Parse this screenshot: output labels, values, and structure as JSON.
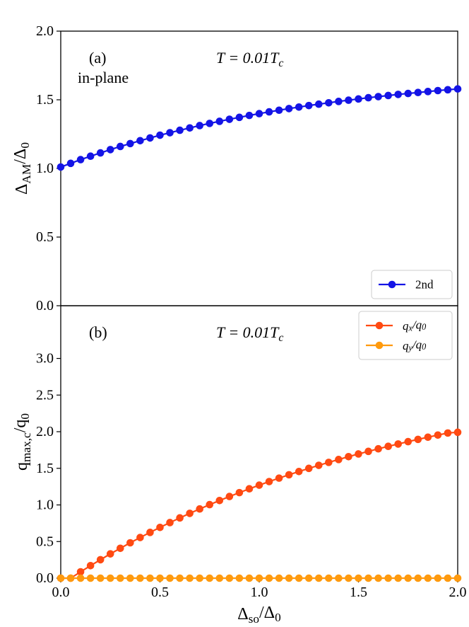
{
  "chart_data": [
    {
      "type": "line",
      "panel_label": "(a)",
      "note": "in-plane",
      "title": [
        "T = 0.01T",
        "c"
      ],
      "ylabel": [
        "Δ",
        "AM",
        "/Δ",
        "0"
      ],
      "x": [
        0,
        0.05,
        0.1,
        0.15,
        0.2,
        0.25,
        0.3,
        0.35,
        0.4,
        0.45,
        0.5,
        0.55,
        0.6,
        0.65,
        0.7,
        0.75,
        0.8,
        0.85,
        0.9,
        0.95,
        1.0,
        1.05,
        1.1,
        1.15,
        1.2,
        1.25,
        1.3,
        1.35,
        1.4,
        1.45,
        1.5,
        1.55,
        1.6,
        1.65,
        1.7,
        1.75,
        1.8,
        1.85,
        1.9,
        1.95,
        2.0
      ],
      "xlim": [
        0,
        2
      ],
      "ylim": [
        0,
        2
      ],
      "yticks": [
        {
          "value": 0,
          "label": "0.0"
        },
        {
          "value": 0.5,
          "label": "0.5"
        },
        {
          "value": 1,
          "label": "1.0"
        },
        {
          "value": 1.5,
          "label": "1.5"
        },
        {
          "value": 2,
          "label": "2.0"
        }
      ],
      "legend": "lower right",
      "series": [
        {
          "name": "2nd",
          "color": "#1414e6",
          "values": [
            1.01,
            1.037,
            1.064,
            1.089,
            1.113,
            1.137,
            1.16,
            1.181,
            1.202,
            1.222,
            1.242,
            1.26,
            1.278,
            1.295,
            1.312,
            1.328,
            1.343,
            1.358,
            1.372,
            1.386,
            1.399,
            1.412,
            1.424,
            1.436,
            1.447,
            1.458,
            1.468,
            1.478,
            1.488,
            1.497,
            1.506,
            1.515,
            1.523,
            1.531,
            1.539,
            1.546,
            1.553,
            1.56,
            1.567,
            1.573,
            1.579
          ]
        }
      ]
    },
    {
      "type": "line",
      "panel_label": "(b)",
      "title": [
        "T = 0.01T",
        "c"
      ],
      "ylabel": [
        "q",
        "max,c",
        "/q",
        "0"
      ],
      "xlabel": [
        "Δ",
        "so",
        "/Δ",
        "0"
      ],
      "x": [
        0,
        0.05,
        0.1,
        0.15,
        0.2,
        0.25,
        0.3,
        0.35,
        0.4,
        0.45,
        0.5,
        0.55,
        0.6,
        0.65,
        0.7,
        0.75,
        0.8,
        0.85,
        0.9,
        0.95,
        1.0,
        1.05,
        1.1,
        1.15,
        1.2,
        1.25,
        1.3,
        1.35,
        1.4,
        1.45,
        1.5,
        1.55,
        1.6,
        1.65,
        1.7,
        1.75,
        1.8,
        1.85,
        1.9,
        1.95,
        2.0
      ],
      "xlim": [
        0,
        2
      ],
      "xticks": [
        {
          "value": 0,
          "label": "0.0"
        },
        {
          "value": 0.5,
          "label": "0.5"
        },
        {
          "value": 1,
          "label": "1.0"
        },
        {
          "value": 1.5,
          "label": "1.5"
        },
        {
          "value": 2,
          "label": "2.0"
        }
      ],
      "ylim": [
        0,
        3.72
      ],
      "yticks": [
        {
          "value": 0,
          "label": "0.0"
        },
        {
          "value": 0.5,
          "label": "0.5"
        },
        {
          "value": 1,
          "label": "1.0"
        },
        {
          "value": 1.5,
          "label": "1.5"
        },
        {
          "value": 2,
          "label": "2.0"
        },
        {
          "value": 2.5,
          "label": "2.5"
        },
        {
          "value": 3,
          "label": "3.0"
        }
      ],
      "legend": "upper right",
      "series": [
        {
          "name": [
            "q",
            "x",
            "/q",
            "0"
          ],
          "color": "#ff4a12",
          "values": [
            0,
            0,
            0.087,
            0.171,
            0.252,
            0.332,
            0.408,
            0.483,
            0.555,
            0.625,
            0.693,
            0.759,
            0.823,
            0.885,
            0.945,
            1.004,
            1.06,
            1.115,
            1.168,
            1.22,
            1.27,
            1.319,
            1.366,
            1.412,
            1.456,
            1.499,
            1.541,
            1.581,
            1.62,
            1.659,
            1.696,
            1.731,
            1.766,
            1.8,
            1.832,
            1.864,
            1.895,
            1.925,
            1.954,
            1.982,
            1.992
          ]
        },
        {
          "name": [
            "q",
            "y",
            "/q",
            "0"
          ],
          "color": "#ff9a0e",
          "values": [
            0,
            0,
            0,
            0,
            0,
            0,
            0,
            0,
            0,
            0,
            0,
            0,
            0,
            0,
            0,
            0,
            0,
            0,
            0,
            0,
            0,
            0,
            0,
            0,
            0,
            0,
            0,
            0,
            0,
            0,
            0,
            0,
            0,
            0,
            0,
            0,
            0,
            0,
            0,
            0,
            0
          ]
        }
      ]
    }
  ]
}
